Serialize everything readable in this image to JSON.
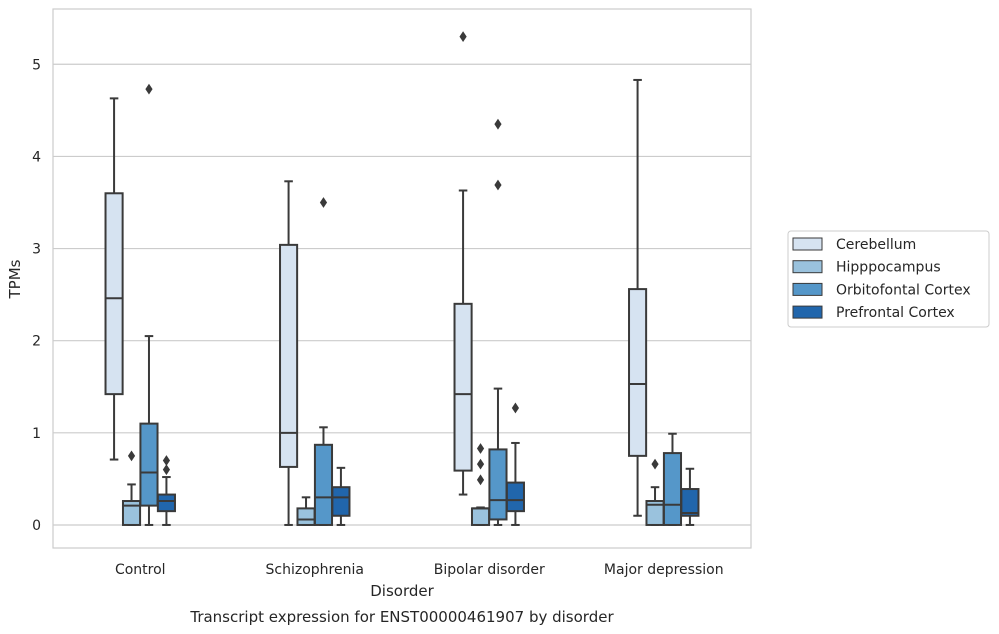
{
  "caption": "Transcript expression for ENST00000461907 by disorder",
  "chart_data": {
    "type": "box",
    "title": "",
    "xlabel": "Disorder",
    "ylabel": "TPMs",
    "ylim": [
      -0.25,
      5.6
    ],
    "yticks": [
      0,
      1,
      2,
      3,
      4,
      5
    ],
    "grid": "horizontal",
    "legend_position": "outside right",
    "categories": [
      "Control",
      "Schizophrenia",
      "Bipolar disorder",
      "Major depression"
    ],
    "series": [
      {
        "name": "Cerebellum",
        "color": "#d6e3f1",
        "boxes": [
          {
            "whisker_low": 0.71,
            "q1": 1.42,
            "median": 2.46,
            "q3": 3.6,
            "whisker_high": 4.63,
            "outliers": []
          },
          {
            "whisker_low": 0.0,
            "q1": 0.63,
            "median": 1.0,
            "q3": 3.04,
            "whisker_high": 3.73,
            "outliers": []
          },
          {
            "whisker_low": 0.33,
            "q1": 0.59,
            "median": 1.42,
            "q3": 2.4,
            "whisker_high": 3.63,
            "outliers": [
              5.3
            ]
          },
          {
            "whisker_low": 0.1,
            "q1": 0.75,
            "median": 1.53,
            "q3": 2.56,
            "whisker_high": 4.83,
            "outliers": []
          }
        ]
      },
      {
        "name": "Hipppocampus",
        "color": "#9ac2dd",
        "boxes": [
          {
            "whisker_low": 0.0,
            "q1": 0.0,
            "median": 0.21,
            "q3": 0.26,
            "whisker_high": 0.44,
            "outliers": [
              0.75
            ]
          },
          {
            "whisker_low": 0.0,
            "q1": 0.0,
            "median": 0.06,
            "q3": 0.18,
            "whisker_high": 0.3,
            "outliers": []
          },
          {
            "whisker_low": 0.0,
            "q1": 0.0,
            "median": 0.18,
            "q3": 0.18,
            "whisker_high": 0.19,
            "outliers": [
              0.83,
              0.66,
              0.49
            ]
          },
          {
            "whisker_low": 0.0,
            "q1": 0.0,
            "median": 0.22,
            "q3": 0.26,
            "whisker_high": 0.41,
            "outliers": [
              0.66
            ]
          }
        ]
      },
      {
        "name": "Orbitofontal Cortex",
        "color": "#5597c9",
        "boxes": [
          {
            "whisker_low": 0.0,
            "q1": 0.21,
            "median": 0.57,
            "q3": 1.1,
            "whisker_high": 2.05,
            "outliers": [
              4.73
            ]
          },
          {
            "whisker_low": 0.0,
            "q1": 0.0,
            "median": 0.3,
            "q3": 0.87,
            "whisker_high": 1.06,
            "outliers": [
              3.5
            ]
          },
          {
            "whisker_low": 0.0,
            "q1": 0.06,
            "median": 0.27,
            "q3": 0.82,
            "whisker_high": 1.48,
            "outliers": [
              4.35,
              3.69
            ]
          },
          {
            "whisker_low": 0.0,
            "q1": 0.0,
            "median": 0.22,
            "q3": 0.78,
            "whisker_high": 0.99,
            "outliers": []
          }
        ]
      },
      {
        "name": "Prefrontal Cortex",
        "color": "#2166ac",
        "boxes": [
          {
            "whisker_low": 0.0,
            "q1": 0.15,
            "median": 0.26,
            "q3": 0.33,
            "whisker_high": 0.52,
            "outliers": [
              0.7,
              0.6
            ]
          },
          {
            "whisker_low": 0.0,
            "q1": 0.1,
            "median": 0.3,
            "q3": 0.41,
            "whisker_high": 0.62,
            "outliers": []
          },
          {
            "whisker_low": 0.0,
            "q1": 0.15,
            "median": 0.27,
            "q3": 0.46,
            "whisker_high": 0.89,
            "outliers": [
              1.27
            ]
          },
          {
            "whisker_low": 0.0,
            "q1": 0.1,
            "median": 0.13,
            "q3": 0.39,
            "whisker_high": 0.61,
            "outliers": []
          }
        ]
      }
    ]
  }
}
